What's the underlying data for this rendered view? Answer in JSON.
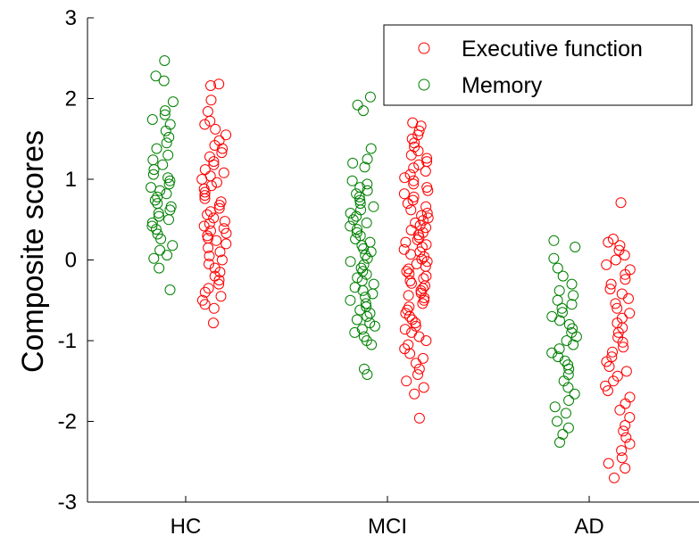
{
  "chart_data": {
    "type": "scatter",
    "title": "",
    "xlabel": "",
    "ylabel": "Composite  scores",
    "categories": [
      "HC",
      "MCI",
      "AD"
    ],
    "yticks": [
      "-3",
      "-2",
      "-1",
      "0",
      "1",
      "2",
      "3"
    ],
    "ylim": [
      -3,
      3
    ],
    "grid": false,
    "legend_position": "top-right",
    "series": [
      {
        "name": "Executive function",
        "color": "#ff0000",
        "groups": [
          {
            "category": "HC",
            "values": [
              2.18,
              2.16,
              1.98,
              1.84,
              1.72,
              1.68,
              1.62,
              1.55,
              1.48,
              1.42,
              1.38,
              1.33,
              1.28,
              1.22,
              1.18,
              1.12,
              1.08,
              1.04,
              1.0,
              0.96,
              0.92,
              0.88,
              0.84,
              0.8,
              0.76,
              0.72,
              0.68,
              0.64,
              0.6,
              0.56,
              0.52,
              0.48,
              0.45,
              0.42,
              0.39,
              0.36,
              0.33,
              0.3,
              0.27,
              0.24,
              0.2,
              0.15,
              0.1,
              0.05,
              0.0,
              -0.05,
              -0.1,
              -0.15,
              -0.2,
              -0.25,
              -0.3,
              -0.35,
              -0.4,
              -0.45,
              -0.5,
              -0.55,
              -0.6,
              -0.78
            ]
          },
          {
            "category": "MCI",
            "values": [
              1.7,
              1.66,
              1.6,
              1.55,
              1.5,
              1.45,
              1.4,
              1.35,
              1.3,
              1.26,
              1.22,
              1.18,
              1.14,
              1.1,
              1.06,
              1.02,
              0.98,
              0.94,
              0.9,
              0.86,
              0.82,
              0.78,
              0.74,
              0.7,
              0.66,
              0.62,
              0.58,
              0.55,
              0.52,
              0.49,
              0.46,
              0.43,
              0.4,
              0.37,
              0.34,
              0.31,
              0.28,
              0.25,
              0.22,
              0.19,
              0.16,
              0.13,
              0.1,
              0.07,
              0.04,
              0.01,
              -0.02,
              -0.05,
              -0.08,
              -0.11,
              -0.14,
              -0.17,
              -0.2,
              -0.23,
              -0.26,
              -0.29,
              -0.32,
              -0.35,
              -0.38,
              -0.41,
              -0.44,
              -0.47,
              -0.5,
              -0.54,
              -0.58,
              -0.62,
              -0.66,
              -0.7,
              -0.74,
              -0.78,
              -0.82,
              -0.86,
              -0.9,
              -0.95,
              -1.0,
              -1.05,
              -1.1,
              -1.16,
              -1.22,
              -1.28,
              -1.35,
              -1.42,
              -1.5,
              -1.58,
              -1.66,
              -1.96
            ]
          },
          {
            "category": "AD",
            "values": [
              0.71,
              0.26,
              0.22,
              0.18,
              0.12,
              0.06,
              0.0,
              -0.06,
              -0.12,
              -0.18,
              -0.24,
              -0.3,
              -0.36,
              -0.42,
              -0.48,
              -0.54,
              -0.6,
              -0.66,
              -0.72,
              -0.78,
              -0.84,
              -0.9,
              -0.96,
              -1.02,
              -1.08,
              -1.14,
              -1.2,
              -1.26,
              -1.32,
              -1.38,
              -1.44,
              -1.5,
              -1.56,
              -1.62,
              -1.7,
              -1.78,
              -1.86,
              -1.95,
              -2.05,
              -2.12,
              -2.2,
              -2.28,
              -2.36,
              -2.45,
              -2.52,
              -2.58,
              -2.7
            ]
          }
        ]
      },
      {
        "name": "Memory",
        "color": "#008000",
        "groups": [
          {
            "category": "HC",
            "values": [
              2.47,
              2.28,
              2.22,
              1.96,
              1.85,
              1.8,
              1.74,
              1.68,
              1.6,
              1.52,
              1.45,
              1.38,
              1.3,
              1.24,
              1.18,
              1.12,
              1.06,
              1.02,
              0.98,
              0.94,
              0.9,
              0.86,
              0.82,
              0.78,
              0.74,
              0.7,
              0.66,
              0.62,
              0.58,
              0.54,
              0.5,
              0.46,
              0.42,
              0.38,
              0.32,
              0.26,
              0.18,
              0.12,
              0.06,
              0.02,
              -0.1,
              -0.37
            ]
          },
          {
            "category": "MCI",
            "values": [
              2.02,
              1.92,
              1.85,
              1.38,
              1.25,
              1.2,
              1.15,
              0.98,
              0.94,
              0.9,
              0.86,
              0.82,
              0.78,
              0.74,
              0.7,
              0.66,
              0.62,
              0.58,
              0.54,
              0.5,
              0.46,
              0.42,
              0.38,
              0.34,
              0.3,
              0.26,
              0.22,
              0.18,
              0.14,
              0.1,
              0.06,
              0.02,
              -0.02,
              -0.06,
              -0.1,
              -0.14,
              -0.18,
              -0.22,
              -0.26,
              -0.3,
              -0.34,
              -0.38,
              -0.42,
              -0.46,
              -0.5,
              -0.54,
              -0.58,
              -0.62,
              -0.66,
              -0.7,
              -0.74,
              -0.78,
              -0.82,
              -0.86,
              -0.9,
              -0.95,
              -1.0,
              -1.05,
              -1.35,
              -1.42
            ]
          },
          {
            "category": "AD",
            "values": [
              0.24,
              0.16,
              0.02,
              -0.1,
              -0.2,
              -0.3,
              -0.38,
              -0.44,
              -0.5,
              -0.55,
              -0.6,
              -0.65,
              -0.7,
              -0.75,
              -0.8,
              -0.85,
              -0.9,
              -0.95,
              -1.0,
              -1.05,
              -1.1,
              -1.15,
              -1.2,
              -1.25,
              -1.3,
              -1.35,
              -1.42,
              -1.5,
              -1.58,
              -1.66,
              -1.74,
              -1.82,
              -1.9,
              -2.0,
              -2.08,
              -2.16,
              -2.26
            ]
          }
        ]
      }
    ]
  }
}
